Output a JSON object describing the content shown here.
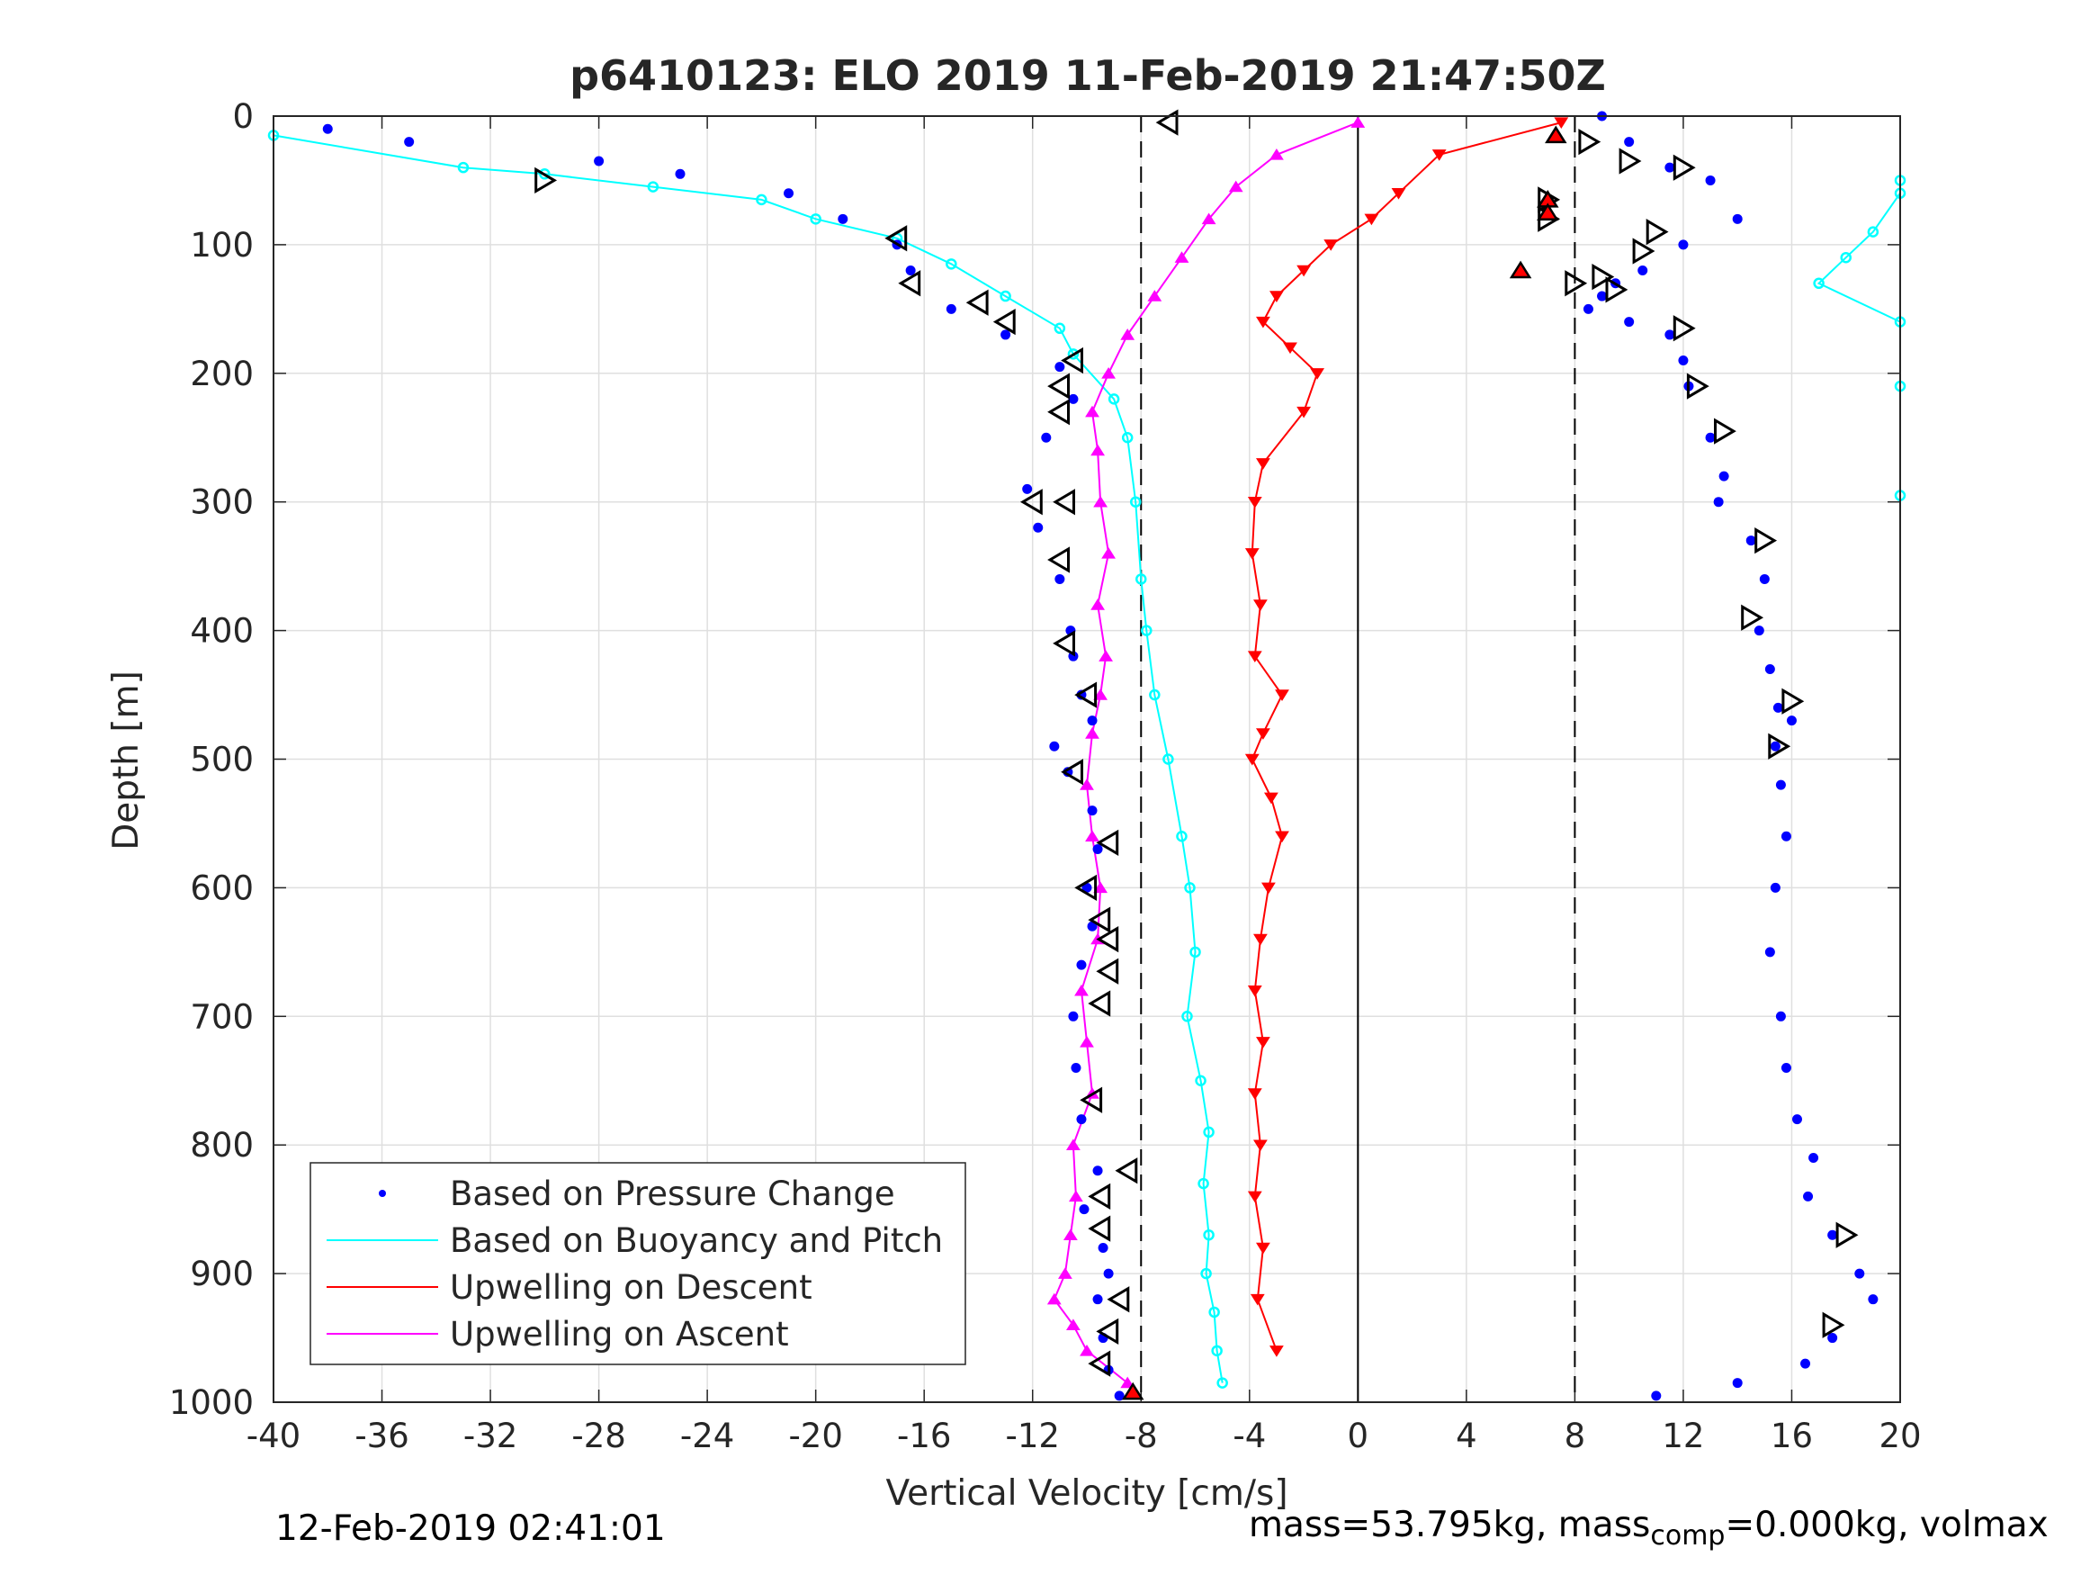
{
  "chart_data": {
    "type": "scatter",
    "title": "p6410123: ELO 2019 11-Feb-2019 21:47:50Z",
    "xlabel": "Vertical Velocity [cm/s]",
    "ylabel": "Depth [m]",
    "xlim": [
      -40,
      20
    ],
    "ylim": [
      0,
      1000
    ],
    "y_reversed": true,
    "grid": true,
    "legend_position": "bottom-left",
    "x_ticks": [
      "-40",
      "-36",
      "-32",
      "-28",
      "-24",
      "-20",
      "-16",
      "-12",
      "-8",
      "-4",
      "0",
      "4",
      "8",
      "12",
      "16",
      "20"
    ],
    "y_ticks": [
      "0",
      "100",
      "200",
      "300",
      "400",
      "500",
      "600",
      "700",
      "800",
      "900",
      "1000"
    ],
    "reference_lines": [
      {
        "x": -8,
        "style": "dashed"
      },
      {
        "x": 0,
        "style": "solid"
      },
      {
        "x": 8,
        "style": "dashed"
      }
    ],
    "series": [
      {
        "name": "Based on Pressure Change",
        "color": "#0000ff",
        "marker": "dot",
        "descent": {
          "x": [
            -38,
            -35,
            -28,
            -25,
            -21,
            -19,
            -17,
            -16.5,
            -15,
            -13,
            -11,
            -10.5,
            -11.5,
            -12.2,
            -11.8,
            -11,
            -10.6,
            -10.5,
            -10.2,
            -9.8,
            -11.2,
            -10.7,
            -9.8,
            -9.6,
            -10,
            -9.8,
            -10.2,
            -10.5,
            -10.4,
            -10.2,
            -9.6,
            -10.1,
            -9.4,
            -9.2,
            -9.6,
            -9.4,
            -9.2,
            -8.8
          ],
          "y": [
            10,
            20,
            35,
            45,
            60,
            80,
            100,
            120,
            150,
            170,
            195,
            220,
            250,
            290,
            320,
            360,
            400,
            420,
            450,
            470,
            490,
            510,
            540,
            570,
            600,
            630,
            660,
            700,
            740,
            780,
            820,
            850,
            880,
            900,
            920,
            950,
            975,
            995
          ]
        },
        "ascent": {
          "x": [
            9,
            10,
            11.5,
            13,
            14,
            12,
            10.5,
            9.5,
            9,
            8.5,
            10,
            11.5,
            12,
            12.2,
            13,
            13.5,
            13.3,
            14.5,
            15,
            14.8,
            15.2,
            15.5,
            16,
            15.4,
            15.6,
            15.8,
            15.4,
            15.2,
            15.6,
            15.8,
            16.2,
            16.8,
            16.6,
            17.5,
            18.5,
            19,
            17.5,
            16.5,
            14,
            11
          ],
          "y": [
            0,
            20,
            40,
            50,
            80,
            100,
            120,
            130,
            140,
            150,
            160,
            170,
            190,
            210,
            250,
            280,
            300,
            330,
            360,
            400,
            430,
            460,
            470,
            490,
            520,
            560,
            600,
            650,
            700,
            740,
            780,
            810,
            840,
            870,
            900,
            920,
            950,
            970,
            985,
            995
          ]
        }
      },
      {
        "name": "Based on Buoyancy and Pitch",
        "color": "#00ffff",
        "marker": "circle",
        "descent": {
          "x": [
            -40,
            -33,
            -30,
            -26,
            -22,
            -20,
            -17,
            -15,
            -13,
            -11,
            -10.5,
            -9,
            -8.5,
            -8.2,
            -8,
            -7.8,
            -7.5,
            -7,
            -6.5,
            -6.2,
            -6,
            -6.3,
            -5.8,
            -5.5,
            -5.7,
            -5.5,
            -5.6,
            -5.3,
            -5.2,
            -5
          ],
          "y": [
            15,
            40,
            45,
            55,
            65,
            80,
            95,
            115,
            140,
            165,
            185,
            220,
            250,
            300,
            360,
            400,
            450,
            500,
            560,
            600,
            650,
            700,
            750,
            790,
            830,
            870,
            900,
            930,
            960,
            985
          ]
        },
        "ascent": {
          "x": [
            20,
            20,
            19,
            18,
            17,
            20,
            20,
            20
          ],
          "y": [
            50,
            60,
            90,
            110,
            130,
            160,
            210,
            295
          ]
        }
      },
      {
        "name": "Upwelling on Descent",
        "color": "#ff0000",
        "marker": "triangle-down",
        "x": [
          7.5,
          3,
          1.5,
          0.5,
          -1,
          -2,
          -3,
          -3.5,
          -2.5,
          -1.5,
          -2,
          -3.5,
          -3.8,
          -3.9,
          -3.6,
          -3.8,
          -2.8,
          -3.5,
          -3.9,
          -3.2,
          -2.8,
          -3.3,
          -3.6,
          -3.8,
          -3.5,
          -3.8,
          -3.6,
          -3.8,
          -3.5,
          -3.7,
          -3
        ],
        "y": [
          5,
          30,
          60,
          80,
          100,
          120,
          140,
          160,
          180,
          200,
          230,
          270,
          300,
          340,
          380,
          420,
          450,
          480,
          500,
          530,
          560,
          600,
          640,
          680,
          720,
          760,
          800,
          840,
          880,
          920,
          960
        ]
      },
      {
        "name": "Upwelling on Ascent",
        "color": "#ff00ff",
        "marker": "triangle-up",
        "x": [
          0,
          -3,
          -4.5,
          -5.5,
          -6.5,
          -7.5,
          -8.5,
          -9.2,
          -9.8,
          -9.6,
          -9.5,
          -9.2,
          -9.6,
          -9.3,
          -9.5,
          -9.8,
          -10,
          -9.8,
          -9.5,
          -9.6,
          -10.2,
          -10,
          -9.8,
          -10.5,
          -10.4,
          -10.6,
          -10.8,
          -11.2,
          -10.5,
          -10,
          -8.5
        ],
        "y": [
          5,
          30,
          55,
          80,
          110,
          140,
          170,
          200,
          230,
          260,
          300,
          340,
          380,
          420,
          450,
          480,
          520,
          560,
          600,
          640,
          680,
          720,
          760,
          800,
          840,
          870,
          900,
          920,
          940,
          960,
          985
        ]
      }
    ],
    "pitch_markers": {
      "descent_left_pointing": {
        "x": [
          -7,
          -17,
          -16.5,
          -14,
          -13,
          -10.5,
          -11,
          -11,
          -10.8,
          -12,
          -11,
          -10.8,
          -10,
          -10.5,
          -9.2,
          -10,
          -9.5,
          -9.2,
          -9.2,
          -9.5,
          -9.8,
          -8.5,
          -9.5,
          -9.5,
          -8.8,
          -9.2,
          -9.5
        ],
        "y": [
          5,
          95,
          130,
          145,
          160,
          190,
          210,
          230,
          300,
          300,
          345,
          410,
          450,
          510,
          565,
          600,
          625,
          640,
          665,
          690,
          765,
          820,
          840,
          865,
          920,
          945,
          970
        ]
      },
      "ascent_right_pointing": {
        "x": [
          -30,
          8.5,
          10,
          12,
          7,
          7,
          11,
          10.5,
          9,
          8,
          9.5,
          12,
          12.5,
          13.5,
          15,
          14.5,
          16,
          15.5,
          18,
          17.5
        ],
        "y": [
          50,
          20,
          35,
          40,
          65,
          80,
          90,
          105,
          125,
          130,
          135,
          165,
          210,
          245,
          330,
          390,
          455,
          490,
          870,
          940
        ]
      }
    },
    "red_filled_markers": {
      "x": [
        7.3,
        7,
        7,
        6,
        -8.3
      ],
      "y": [
        15,
        65,
        75,
        120,
        992
      ]
    }
  },
  "legend": {
    "items": [
      "Based on Pressure Change",
      "Based on Buoyancy and Pitch",
      "Upwelling on Descent",
      "Upwelling on Ascent"
    ]
  },
  "footer": {
    "timestamp": "12-Feb-2019 02:41:01",
    "mass_text": "mass=53.795kg, mass",
    "mass_sub": "comp",
    "mass_rest": "=0.000kg, volmax"
  }
}
